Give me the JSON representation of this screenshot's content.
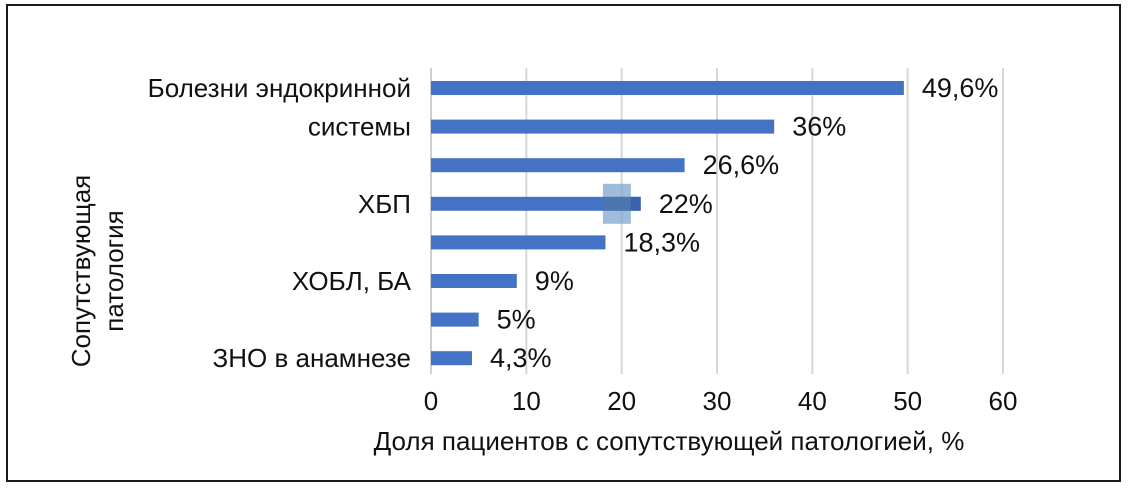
{
  "chart_data": {
    "type": "bar",
    "orientation": "horizontal",
    "category_labels": [
      "Болезни эндокринной",
      "системы",
      "",
      "ХБП",
      "",
      "ХОБЛ, БА",
      "",
      "ЗНО в анамнезе"
    ],
    "values": [
      49.6,
      36,
      26.6,
      22,
      18.3,
      9,
      5,
      4.3
    ],
    "value_labels": [
      "49,6%",
      "36%",
      "26,6%",
      "22%",
      "18,3%",
      "9%",
      "5%",
      "4,3%"
    ],
    "xlabel": "Доля пациентов с сопутствующей патологией, %",
    "ylabel": [
      "Сопутствующая",
      "патология"
    ],
    "xticks": [
      "0",
      "10",
      "20",
      "30",
      "40",
      "50",
      "60"
    ],
    "xlim": [
      0,
      60
    ],
    "grid": "vertical",
    "bar_color": "#4472c4",
    "highlight_color": "#7fa7cf"
  }
}
